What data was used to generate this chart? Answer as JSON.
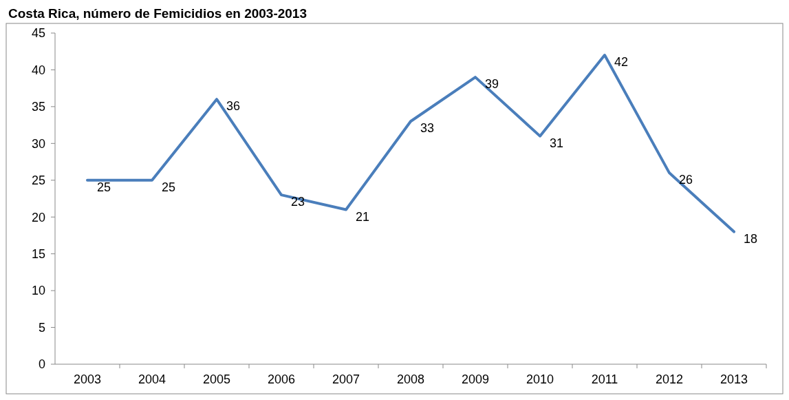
{
  "chart_data": {
    "type": "line",
    "title": "Costa Rica, número de Femicidios en 2003-2013",
    "categories": [
      "2003",
      "2004",
      "2005",
      "2006",
      "2007",
      "2008",
      "2009",
      "2010",
      "2011",
      "2012",
      "2013"
    ],
    "series": [
      {
        "color": "#4a7ebb",
        "values": [
          25,
          25,
          36,
          23,
          21,
          33,
          39,
          31,
          42,
          26,
          18
        ]
      }
    ],
    "ylim": [
      0,
      45
    ],
    "yticks": [
      0,
      5,
      10,
      15,
      20,
      25,
      30,
      35,
      40,
      45
    ],
    "data_labels": true,
    "marker": "none",
    "line_style": "solid"
  }
}
